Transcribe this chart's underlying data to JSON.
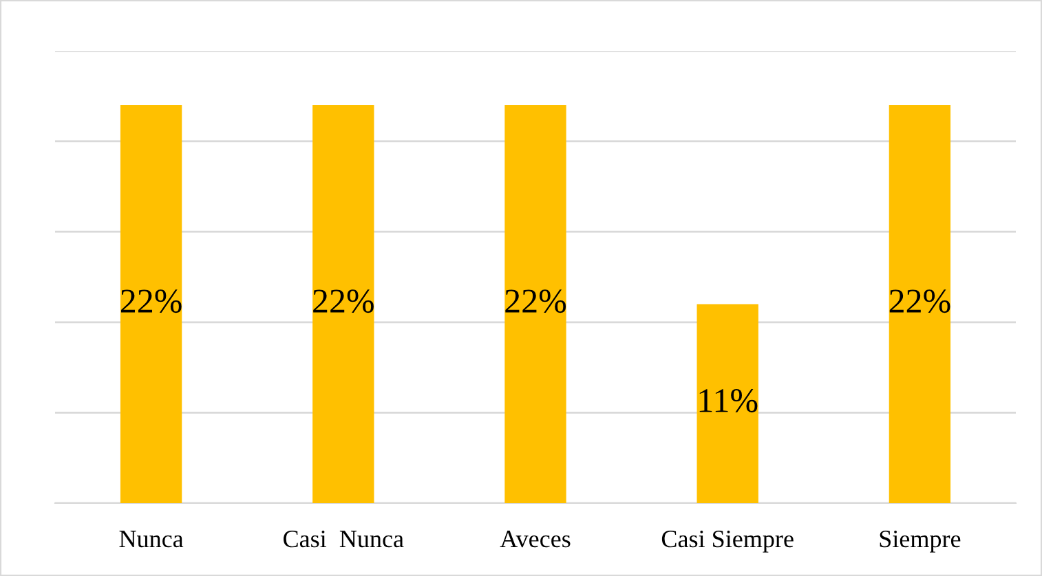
{
  "chart_data": {
    "type": "bar",
    "categories": [
      "Nunca",
      "Casi  Nunca",
      "Aveces",
      "Casi Siempre",
      "Siempre"
    ],
    "values": [
      22,
      22,
      22,
      11,
      22
    ],
    "value_labels": [
      "22%",
      "22%",
      "22%",
      "11%",
      "22%"
    ],
    "color": "#ffc000",
    "ylim": [
      0,
      25
    ],
    "yticks": [
      {
        "value": 0,
        "label": null
      },
      {
        "value": 5,
        "label": null
      },
      {
        "value": 10,
        "label": null
      },
      {
        "value": 15,
        "label": null
      },
      {
        "value": 20,
        "label": null
      },
      {
        "value": 25,
        "label": null
      }
    ],
    "grid": "y",
    "tick_labels": "x"
  }
}
